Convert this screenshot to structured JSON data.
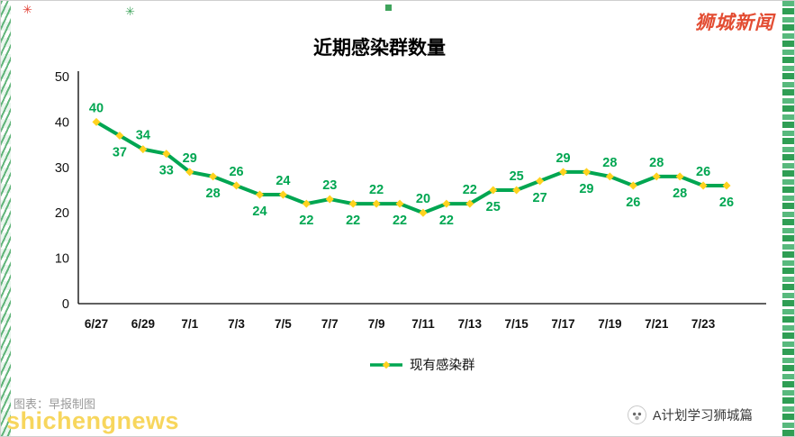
{
  "page": {
    "brand": "狮城新闻",
    "watermark": "shichengnews",
    "chart_credit": "图表：早报制图",
    "footer_account": "A计划学习狮城篇"
  },
  "chart_data": {
    "type": "line",
    "title": "近期感染群数量",
    "x": [
      "6/27",
      "6/28",
      "6/29",
      "6/30",
      "7/1",
      "7/2",
      "7/3",
      "7/4",
      "7/5",
      "7/6",
      "7/7",
      "7/8",
      "7/9",
      "7/10",
      "7/11",
      "7/12",
      "7/13",
      "7/14",
      "7/15",
      "7/16",
      "7/17",
      "7/18",
      "7/19",
      "7/20",
      "7/21",
      "7/22",
      "7/23",
      "7/24"
    ],
    "series": [
      {
        "name": "现有感染群",
        "values": [
          40,
          37,
          34,
          33,
          29,
          28,
          26,
          24,
          24,
          22,
          23,
          22,
          22,
          22,
          20,
          22,
          22,
          25,
          25,
          27,
          29,
          29,
          28,
          26,
          28,
          28,
          26,
          26
        ]
      }
    ],
    "ylim": [
      0,
      50
    ],
    "yticks": [
      0,
      10,
      20,
      30,
      40,
      50
    ],
    "x_tick_every": 2,
    "grid": false,
    "legend_position": "bottom",
    "label_placement": "alternate-above-below",
    "line_color": "#00A651",
    "marker_color": "#FFD21E",
    "label_color": "#00A651"
  }
}
